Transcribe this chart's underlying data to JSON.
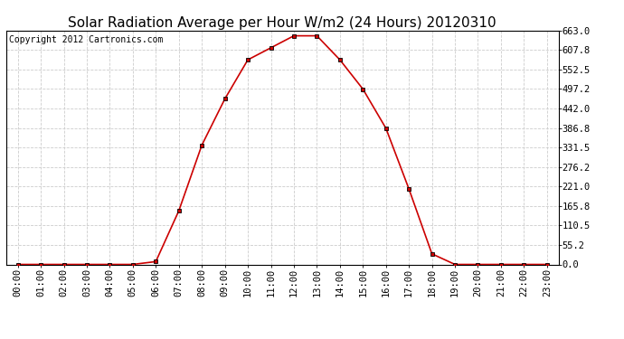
{
  "title": "Solar Radiation Average per Hour W/m2 (24 Hours) 20120310",
  "copyright": "Copyright 2012 Cartronics.com",
  "hours": [
    "00:00",
    "01:00",
    "02:00",
    "03:00",
    "04:00",
    "05:00",
    "06:00",
    "07:00",
    "08:00",
    "09:00",
    "10:00",
    "11:00",
    "12:00",
    "13:00",
    "14:00",
    "15:00",
    "16:00",
    "17:00",
    "18:00",
    "19:00",
    "20:00",
    "21:00",
    "22:00",
    "23:00"
  ],
  "values": [
    0.0,
    0.0,
    0.0,
    0.0,
    0.0,
    0.0,
    8.0,
    152.0,
    338.0,
    469.0,
    580.0,
    614.0,
    648.0,
    648.0,
    580.0,
    497.0,
    386.0,
    214.0,
    30.0,
    0.0,
    0.0,
    0.0,
    0.0,
    0.0
  ],
  "line_color": "#cc0000",
  "marker": "s",
  "marker_color": "#000000",
  "marker_size": 3,
  "background_color": "#ffffff",
  "grid_color": "#cccccc",
  "title_fontsize": 11,
  "copyright_fontsize": 7,
  "tick_fontsize": 7.5,
  "ytick_labels": [
    "0.0",
    "55.2",
    "110.5",
    "165.8",
    "221.0",
    "276.2",
    "331.5",
    "386.8",
    "442.0",
    "497.2",
    "552.5",
    "607.8",
    "663.0"
  ],
  "ytick_values": [
    0.0,
    55.2,
    110.5,
    165.8,
    221.0,
    276.2,
    331.5,
    386.8,
    442.0,
    497.2,
    552.5,
    607.8,
    663.0
  ],
  "ylim": [
    0.0,
    663.0
  ]
}
